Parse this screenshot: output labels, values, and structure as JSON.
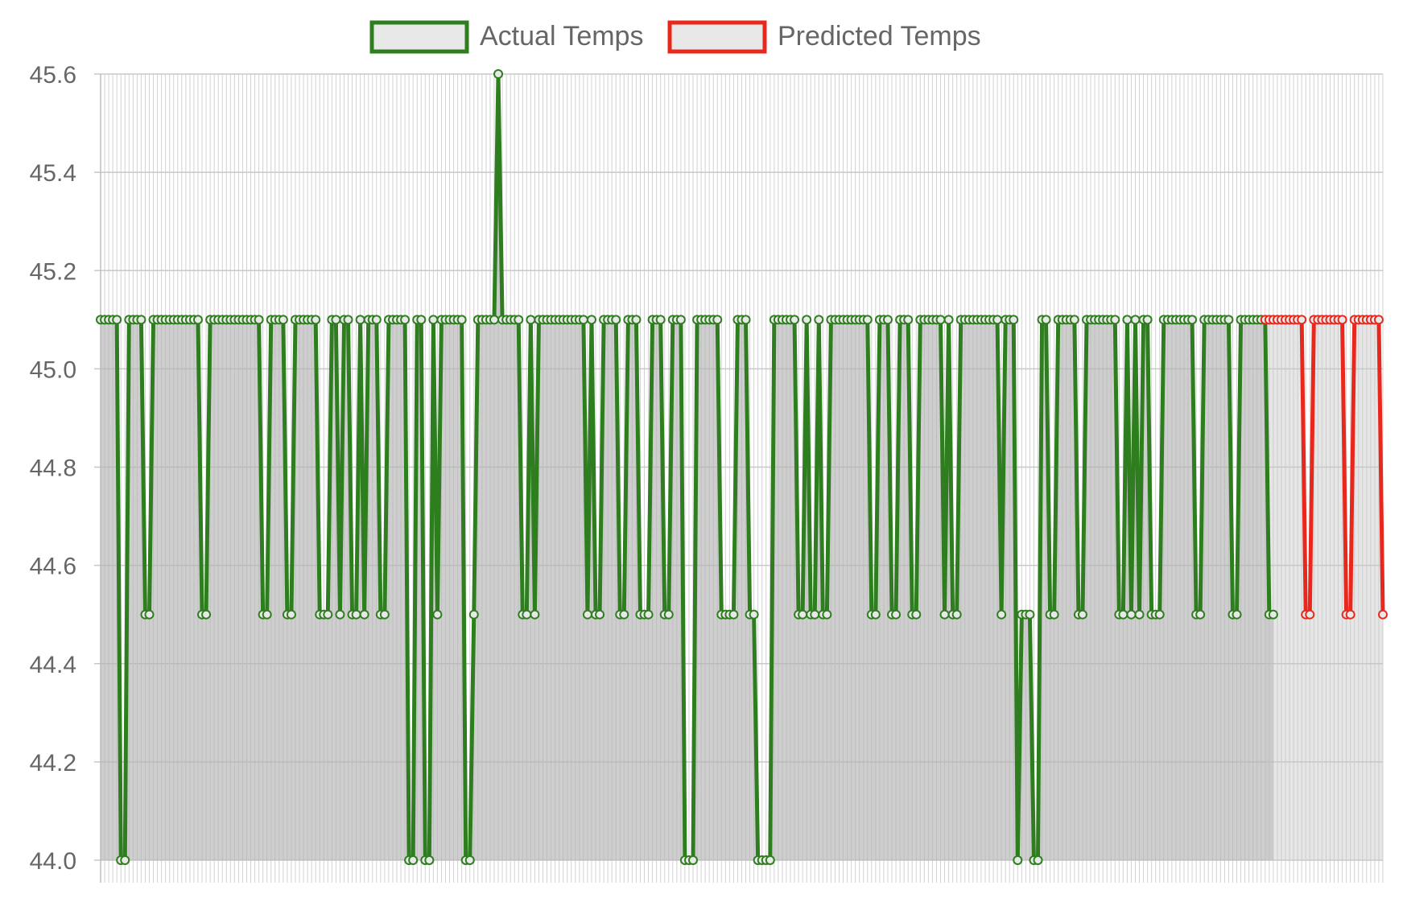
{
  "chart_data": {
    "type": "line",
    "title": "",
    "xlabel": "",
    "ylabel": "",
    "ylim": [
      44.0,
      45.6
    ],
    "y_ticks": [
      "44.0",
      "44.2",
      "44.4",
      "44.6",
      "44.8",
      "45.0",
      "45.2",
      "45.4",
      "45.6"
    ],
    "grid": true,
    "legend_position": "top",
    "fill": "gray area under each series",
    "series": [
      {
        "name": "Actual Temps",
        "color": "#2e7d1f",
        "values": [
          45.1,
          45.1,
          45.1,
          45.1,
          45.1,
          44.0,
          44.0,
          45.1,
          45.1,
          45.1,
          45.1,
          44.5,
          44.5,
          45.1,
          45.1,
          45.1,
          45.1,
          45.1,
          45.1,
          45.1,
          45.1,
          45.1,
          45.1,
          45.1,
          45.1,
          44.5,
          44.5,
          45.1,
          45.1,
          45.1,
          45.1,
          45.1,
          45.1,
          45.1,
          45.1,
          45.1,
          45.1,
          45.1,
          45.1,
          45.1,
          44.5,
          44.5,
          45.1,
          45.1,
          45.1,
          45.1,
          44.5,
          44.5,
          45.1,
          45.1,
          45.1,
          45.1,
          45.1,
          45.1,
          44.5,
          44.5,
          44.5,
          45.1,
          45.1,
          44.5,
          45.1,
          45.1,
          44.5,
          44.5,
          45.1,
          44.5,
          45.1,
          45.1,
          45.1,
          44.5,
          44.5,
          45.1,
          45.1,
          45.1,
          45.1,
          45.1,
          44.0,
          44.0,
          45.1,
          45.1,
          44.0,
          44.0,
          45.1,
          44.5,
          45.1,
          45.1,
          45.1,
          45.1,
          45.1,
          45.1,
          44.0,
          44.0,
          44.5,
          45.1,
          45.1,
          45.1,
          45.1,
          45.1,
          45.6,
          45.1,
          45.1,
          45.1,
          45.1,
          45.1,
          44.5,
          44.5,
          45.1,
          44.5,
          45.1,
          45.1,
          45.1,
          45.1,
          45.1,
          45.1,
          45.1,
          45.1,
          45.1,
          45.1,
          45.1,
          45.1,
          44.5,
          45.1,
          44.5,
          44.5,
          45.1,
          45.1,
          45.1,
          45.1,
          44.5,
          44.5,
          45.1,
          45.1,
          45.1,
          44.5,
          44.5,
          44.5,
          45.1,
          45.1,
          45.1,
          44.5,
          44.5,
          45.1,
          45.1,
          45.1,
          44.0,
          44.0,
          44.0,
          45.1,
          45.1,
          45.1,
          45.1,
          45.1,
          45.1,
          44.5,
          44.5,
          44.5,
          44.5,
          45.1,
          45.1,
          45.1,
          44.5,
          44.5,
          44.0,
          44.0,
          44.0,
          44.0,
          45.1,
          45.1,
          45.1,
          45.1,
          45.1,
          45.1,
          44.5,
          44.5,
          45.1,
          44.5,
          44.5,
          45.1,
          44.5,
          44.5,
          45.1,
          45.1,
          45.1,
          45.1,
          45.1,
          45.1,
          45.1,
          45.1,
          45.1,
          45.1,
          44.5,
          44.5,
          45.1,
          45.1,
          45.1,
          44.5,
          44.5,
          45.1,
          45.1,
          45.1,
          44.5,
          44.5,
          45.1,
          45.1,
          45.1,
          45.1,
          45.1,
          45.1,
          44.5,
          45.1,
          44.5,
          44.5,
          45.1,
          45.1,
          45.1,
          45.1,
          45.1,
          45.1,
          45.1,
          45.1,
          45.1,
          45.1,
          44.5,
          45.1,
          45.1,
          45.1,
          44.0,
          44.5,
          44.5,
          44.5,
          44.0,
          44.0,
          45.1,
          45.1,
          44.5,
          44.5,
          45.1,
          45.1,
          45.1,
          45.1,
          45.1,
          44.5,
          44.5,
          45.1,
          45.1,
          45.1,
          45.1,
          45.1,
          45.1,
          45.1,
          45.1,
          44.5,
          44.5,
          45.1,
          44.5,
          45.1,
          44.5,
          45.1,
          45.1,
          44.5,
          44.5,
          44.5,
          45.1,
          45.1,
          45.1,
          45.1,
          45.1,
          45.1,
          45.1,
          45.1,
          44.5,
          44.5,
          45.1,
          45.1,
          45.1,
          45.1,
          45.1,
          45.1,
          45.1,
          44.5,
          44.5,
          45.1,
          45.1,
          45.1,
          45.1,
          45.1,
          45.1,
          45.1,
          44.5,
          44.5
        ],
        "x_range": [
          0,
          287
        ]
      },
      {
        "name": "Predicted Temps",
        "color": "#e8281d",
        "values": [
          45.1,
          45.1,
          45.1,
          45.1,
          45.1,
          45.1,
          45.1,
          45.1,
          45.1,
          45.1,
          44.5,
          44.5,
          45.1,
          45.1,
          45.1,
          45.1,
          45.1,
          45.1,
          45.1,
          45.1,
          44.5,
          44.5,
          45.1,
          45.1,
          45.1,
          45.1,
          45.1,
          45.1,
          45.1,
          44.5
        ],
        "x_range": [
          287,
          316
        ]
      }
    ],
    "x_count": 317
  }
}
